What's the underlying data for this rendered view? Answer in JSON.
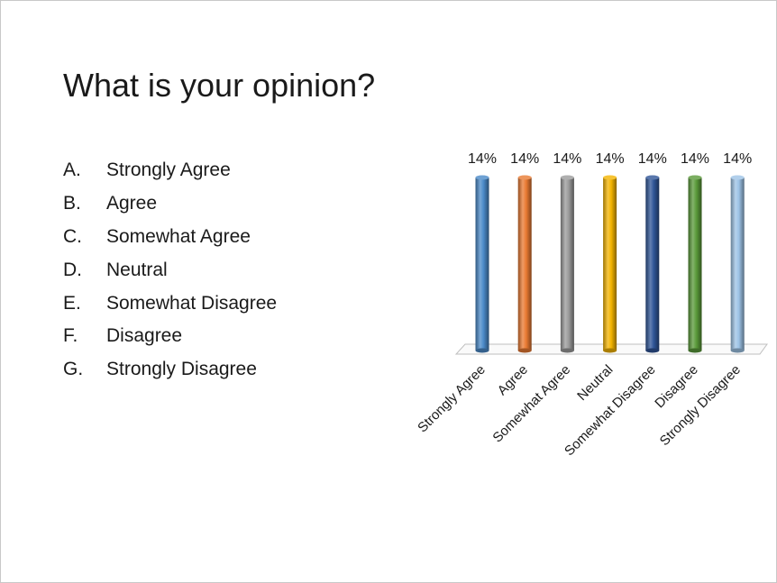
{
  "slide": {
    "title": "What is your opinion?",
    "options": [
      {
        "letter": "A.",
        "text": "Strongly Agree"
      },
      {
        "letter": "B.",
        "text": "Agree"
      },
      {
        "letter": "C.",
        "text": "Somewhat Agree"
      },
      {
        "letter": "D.",
        "text": "Neutral"
      },
      {
        "letter": "E.",
        "text": "Somewhat Disagree"
      },
      {
        "letter": "F.",
        "text": "Disagree"
      },
      {
        "letter": "G.",
        "text": "Strongly Disagree"
      }
    ]
  },
  "chart_data": {
    "type": "bar",
    "categories": [
      "Strongly Agree",
      "Agree",
      "Somewhat Agree",
      "Neutral",
      "Somewhat Disagree",
      "Disagree",
      "Strongly Disagree"
    ],
    "values": [
      14,
      14,
      14,
      14,
      14,
      14,
      14
    ],
    "value_labels": [
      "14%",
      "14%",
      "14%",
      "14%",
      "14%",
      "14%",
      "14%"
    ],
    "unit": "%",
    "ylim": [
      0,
      14
    ],
    "grid": false,
    "legend": "none",
    "colors": [
      "#4a89c8",
      "#e97a32",
      "#9b9b9b",
      "#f4b400",
      "#2f5597",
      "#5a9a3a",
      "#9dc3e6"
    ]
  }
}
